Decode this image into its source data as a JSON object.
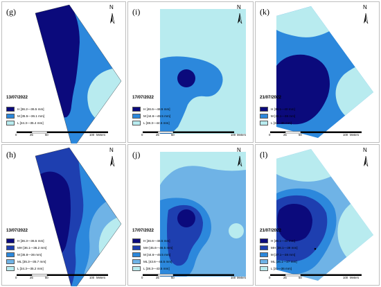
{
  "colors": {
    "c5": "#0b0a7c",
    "c4": "#1e3fb0",
    "c3": "#2c88dc",
    "c2": "#6fb3e6",
    "c1": "#b8ebef"
  },
  "north_arrow": {
    "label": "N",
    "icon": "north-arrow-icon"
  },
  "scale_bar": {
    "ticks": [
      "0",
      "25",
      "50",
      "100"
    ],
    "unit": "Meters"
  },
  "panels": [
    {
      "label": "(g)",
      "date": "13/07/2022",
      "legend": [
        {
          "color": "#0b0a7c",
          "text": "H [36.2—36.5 mm]"
        },
        {
          "color": "#2c88dc",
          "text": "M [35.5—36.1 mm]"
        },
        {
          "color": "#b8ebef",
          "text": "L [34.3—35.4 mm]"
        }
      ]
    },
    {
      "label": "(i)",
      "date": "17/07/2022",
      "legend": [
        {
          "color": "#0b0a7c",
          "text": "H [46.6—48.5 mm]"
        },
        {
          "color": "#2c88dc",
          "text": "M [44.6—46.5 mm]"
        },
        {
          "color": "#b8ebef",
          "text": "L [38.3—44.5 mm]"
        }
      ]
    },
    {
      "label": "(k)",
      "date": "21/07/2022",
      "legend": [
        {
          "color": "#0b0a7c",
          "text": "H [38.1—40 mm]"
        },
        {
          "color": "#2c88dc",
          "text": "M [36.1—38 mm]"
        },
        {
          "color": "#b8ebef",
          "text": "L [31—36 mm]"
        }
      ]
    },
    {
      "label": "(h)",
      "date": "13/07/2022",
      "legend": [
        {
          "color": "#0b0a7c",
          "text": "H [36.3—36.5 mm]"
        },
        {
          "color": "#1e3fb0",
          "text": "MH [36.1—36.2 mm]"
        },
        {
          "color": "#2c88dc",
          "text": "M [35.8—36 mm]"
        },
        {
          "color": "#6fb3e6",
          "text": "ML [35.3—35.7 mm]"
        },
        {
          "color": "#b8ebef",
          "text": "L [34.3—35.2 mm]"
        }
      ]
    },
    {
      "label": "(j)",
      "date": "17/07/2022",
      "legend": [
        {
          "color": "#0b0a7c",
          "text": "H [46.6—48.5 mm]"
        },
        {
          "color": "#1e3fb0",
          "text": "MH [45.6—46.5 mm]"
        },
        {
          "color": "#2c88dc",
          "text": "M [44.6—45.5 mm]"
        },
        {
          "color": "#6fb3e6",
          "text": "ML [43.6—44.5 mm]"
        },
        {
          "color": "#b8ebef",
          "text": "L [38.3—43.5 mm]"
        }
      ]
    },
    {
      "label": "(l)",
      "date": "21/07/2022",
      "legend": [
        {
          "color": "#0b0a7c",
          "text": "H [39.1—40 mm]"
        },
        {
          "color": "#1e3fb0",
          "text": "MH [38.1—39 mm]"
        },
        {
          "color": "#2c88dc",
          "text": "M [37.1—38 mm]"
        },
        {
          "color": "#6fb3e6",
          "text": "ML [36.1—37 mm]"
        },
        {
          "color": "#b8ebef",
          "text": "L [31—36 mm]"
        }
      ]
    }
  ]
}
